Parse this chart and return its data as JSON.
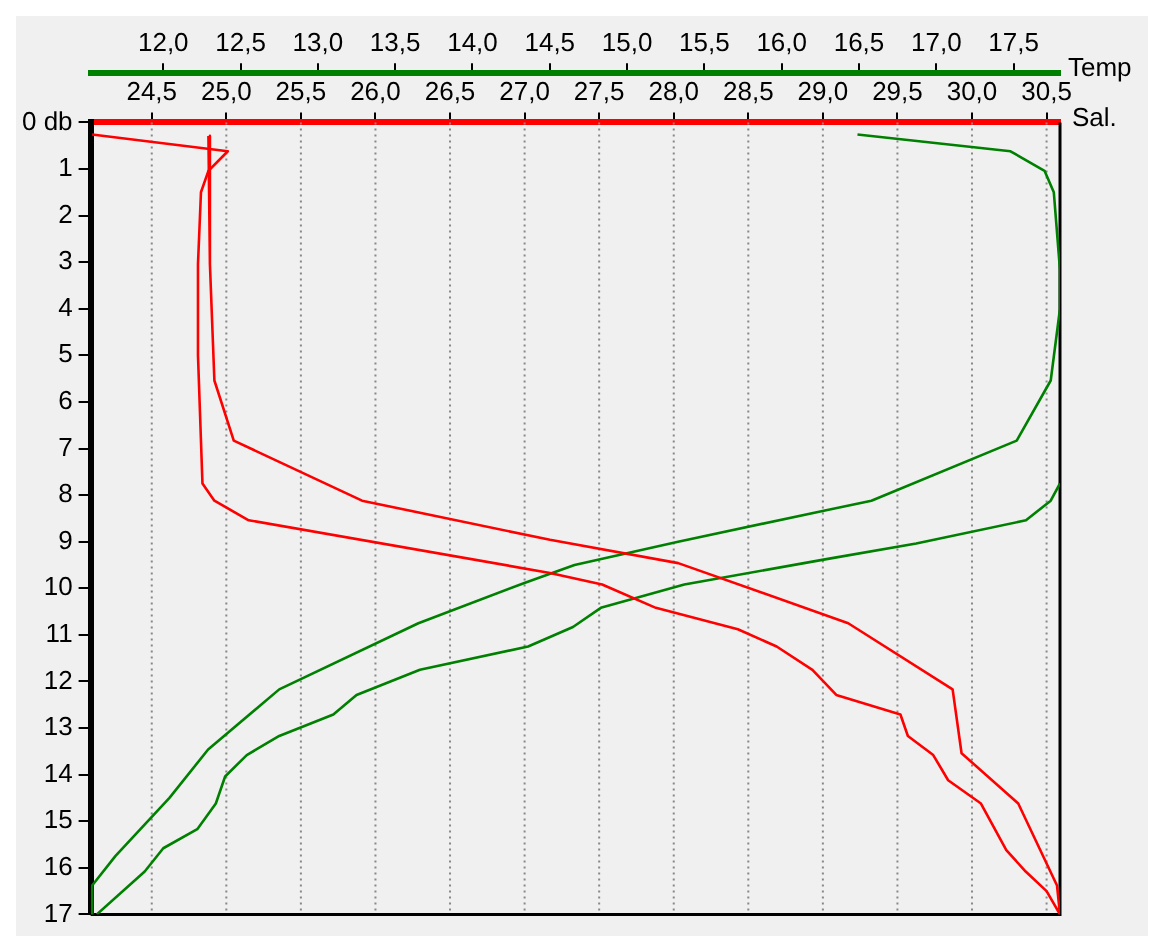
{
  "chart_data": {
    "type": "line",
    "xlabel": "Sal.",
    "x2label": "Temp",
    "xlim": [
      24.09,
      30.59
    ],
    "xticks": [
      {
        "value": 24.5,
        "label": "24,5"
      },
      {
        "value": 25,
        "label": "25,0"
      },
      {
        "value": 25.5,
        "label": "25,5"
      },
      {
        "value": 26,
        "label": "26,0"
      },
      {
        "value": 26.5,
        "label": "26,5"
      },
      {
        "value": 27,
        "label": "27,0"
      },
      {
        "value": 27.5,
        "label": "27,5"
      },
      {
        "value": 28,
        "label": "28,0"
      },
      {
        "value": 28.5,
        "label": "28,5"
      },
      {
        "value": 29,
        "label": "29,0"
      },
      {
        "value": 29.5,
        "label": "29,5"
      },
      {
        "value": 30,
        "label": "30,0"
      },
      {
        "value": 30.5,
        "label": "30,5"
      }
    ],
    "x2lim": [
      11.53,
      17.8
    ],
    "x2ticks": [
      {
        "value": 12,
        "label": "12,0"
      },
      {
        "value": 12.5,
        "label": "12,5"
      },
      {
        "value": 13,
        "label": "13,0"
      },
      {
        "value": 13.5,
        "label": "13,5"
      },
      {
        "value": 14,
        "label": "14,0"
      },
      {
        "value": 14.5,
        "label": "14,5"
      },
      {
        "value": 15,
        "label": "15,0"
      },
      {
        "value": 15.5,
        "label": "15,5"
      },
      {
        "value": 16,
        "label": "16,0"
      },
      {
        "value": 16.5,
        "label": "16,5"
      },
      {
        "value": 17,
        "label": "17,0"
      },
      {
        "value": 17.5,
        "label": "17,5"
      }
    ],
    "ylim": [
      17,
      0
    ],
    "yticks": [
      {
        "value": 0,
        "label": "0 db"
      },
      1,
      2,
      3,
      4,
      5,
      6,
      7,
      8,
      9,
      10,
      11,
      12,
      13,
      14,
      15,
      16,
      17
    ],
    "grid": "x",
    "legend": false,
    "marker": "none",
    "line_style": "solid",
    "series": [
      {
        "color": "#ff0000",
        "x": [
          24.1,
          25.01,
          24.88,
          24.83,
          24.81,
          24.81,
          24.84,
          24.92,
          25.15,
          27.17,
          27.52,
          27.88,
          28.43,
          28.69,
          28.93,
          29.09,
          29.52,
          29.57,
          29.74,
          29.84,
          30.06,
          30.23,
          30.36,
          30.5,
          30.59
        ],
        "values": [
          0.26,
          0.62,
          1.04,
          1.5,
          3.04,
          5.0,
          7.75,
          8.12,
          8.54,
          9.67,
          9.92,
          10.42,
          10.88,
          11.25,
          11.75,
          12.29,
          12.71,
          13.17,
          13.58,
          14.12,
          14.62,
          15.62,
          16.08,
          16.5,
          17
        ]
      },
      {
        "color": "#ff0000",
        "x": [
          24.88,
          24.89,
          24.92,
          25.05,
          25.91,
          27.17,
          28.03,
          29.17,
          29.87,
          29.93,
          30.31,
          30.57,
          30.59
        ],
        "values": [
          0.29,
          3.04,
          5.54,
          6.83,
          8.12,
          8.96,
          9.46,
          10.75,
          12.17,
          13.54,
          14.62,
          16.38,
          17
        ]
      },
      {
        "color": "#008000",
        "axis": "x2",
        "x": [
          16.49,
          17.48,
          17.7,
          17.76,
          17.8,
          17.8,
          17.74,
          17.52,
          16.58,
          16.28,
          15.33,
          14.66,
          14.34,
          13.65,
          12.75,
          12.29,
          12.04,
          11.69,
          11.54,
          11.54
        ],
        "values": [
          0.26,
          0.62,
          1.04,
          1.5,
          3.17,
          4,
          5.54,
          6.83,
          8.12,
          8.33,
          9,
          9.5,
          9.88,
          10.75,
          12.17,
          13.46,
          14.5,
          15.75,
          16.38,
          17
        ]
      },
      {
        "color": "#008000",
        "axis": "x2",
        "x": [
          17.8,
          17.74,
          17.58,
          16.87,
          16.28,
          15.37,
          14.83,
          14.65,
          14.36,
          13.66,
          13.25,
          13.1,
          12.75,
          12.54,
          12.4,
          12.34,
          12.22,
          12.0,
          11.88,
          11.57
        ],
        "values": [
          7.75,
          8.12,
          8.54,
          9.04,
          9.38,
          9.92,
          10.42,
          10.83,
          11.25,
          11.75,
          12.29,
          12.71,
          13.17,
          13.58,
          14.04,
          14.62,
          15.17,
          15.58,
          16.08,
          17
        ]
      }
    ]
  }
}
